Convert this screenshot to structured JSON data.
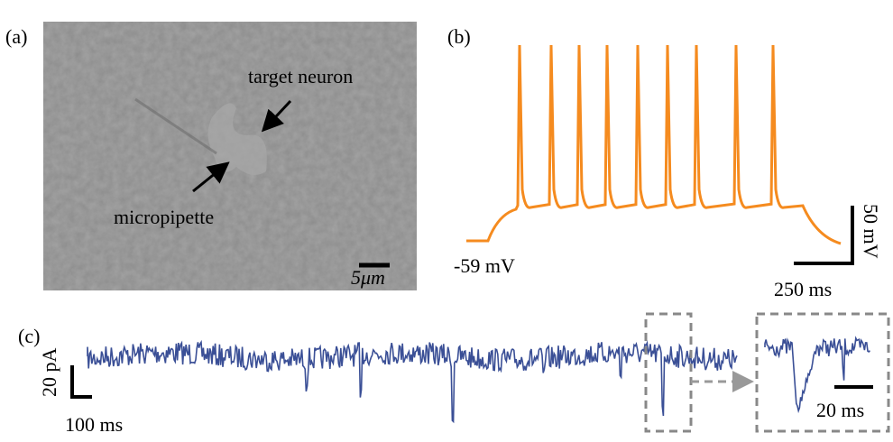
{
  "panel_a": {
    "label": "(a)",
    "target_label": "target neuron",
    "pipette_label": "micropipette",
    "scale_label": "5μm"
  },
  "panel_b": {
    "label": "(b)",
    "baseline_label": "-59 mV",
    "voltage_scale": "50 mV",
    "time_scale": "250 ms"
  },
  "panel_c": {
    "label": "(c)",
    "current_scale": "20 pA",
    "time_scale": "100 ms",
    "inset_time_scale": "20 ms"
  }
}
